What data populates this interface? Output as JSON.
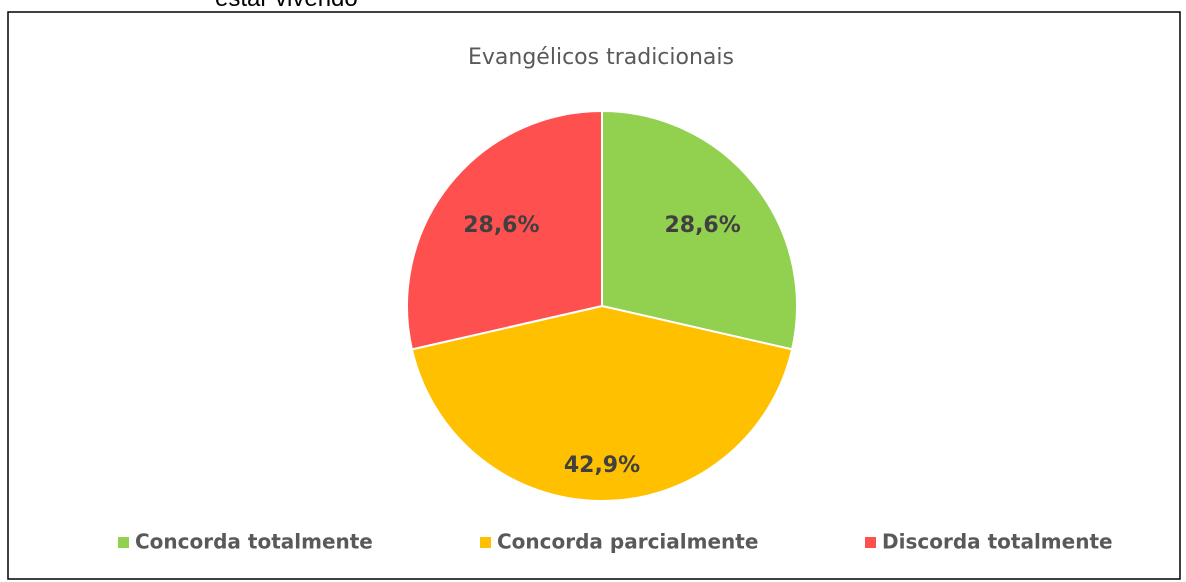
{
  "caption_fragment": "estar vivendo",
  "chart_data": {
    "type": "pie",
    "title": "Evangélicos tradicionais",
    "categories": [
      "Concorda totalmente",
      "Concorda parcialmente",
      "Discorda totalmente"
    ],
    "values": [
      28.6,
      42.9,
      28.6
    ],
    "value_labels": [
      "28,6%",
      "42,9%",
      "28,6%"
    ],
    "colors": [
      "#92d050",
      "#ffc000",
      "#ff5050"
    ],
    "legend": "bottom"
  }
}
